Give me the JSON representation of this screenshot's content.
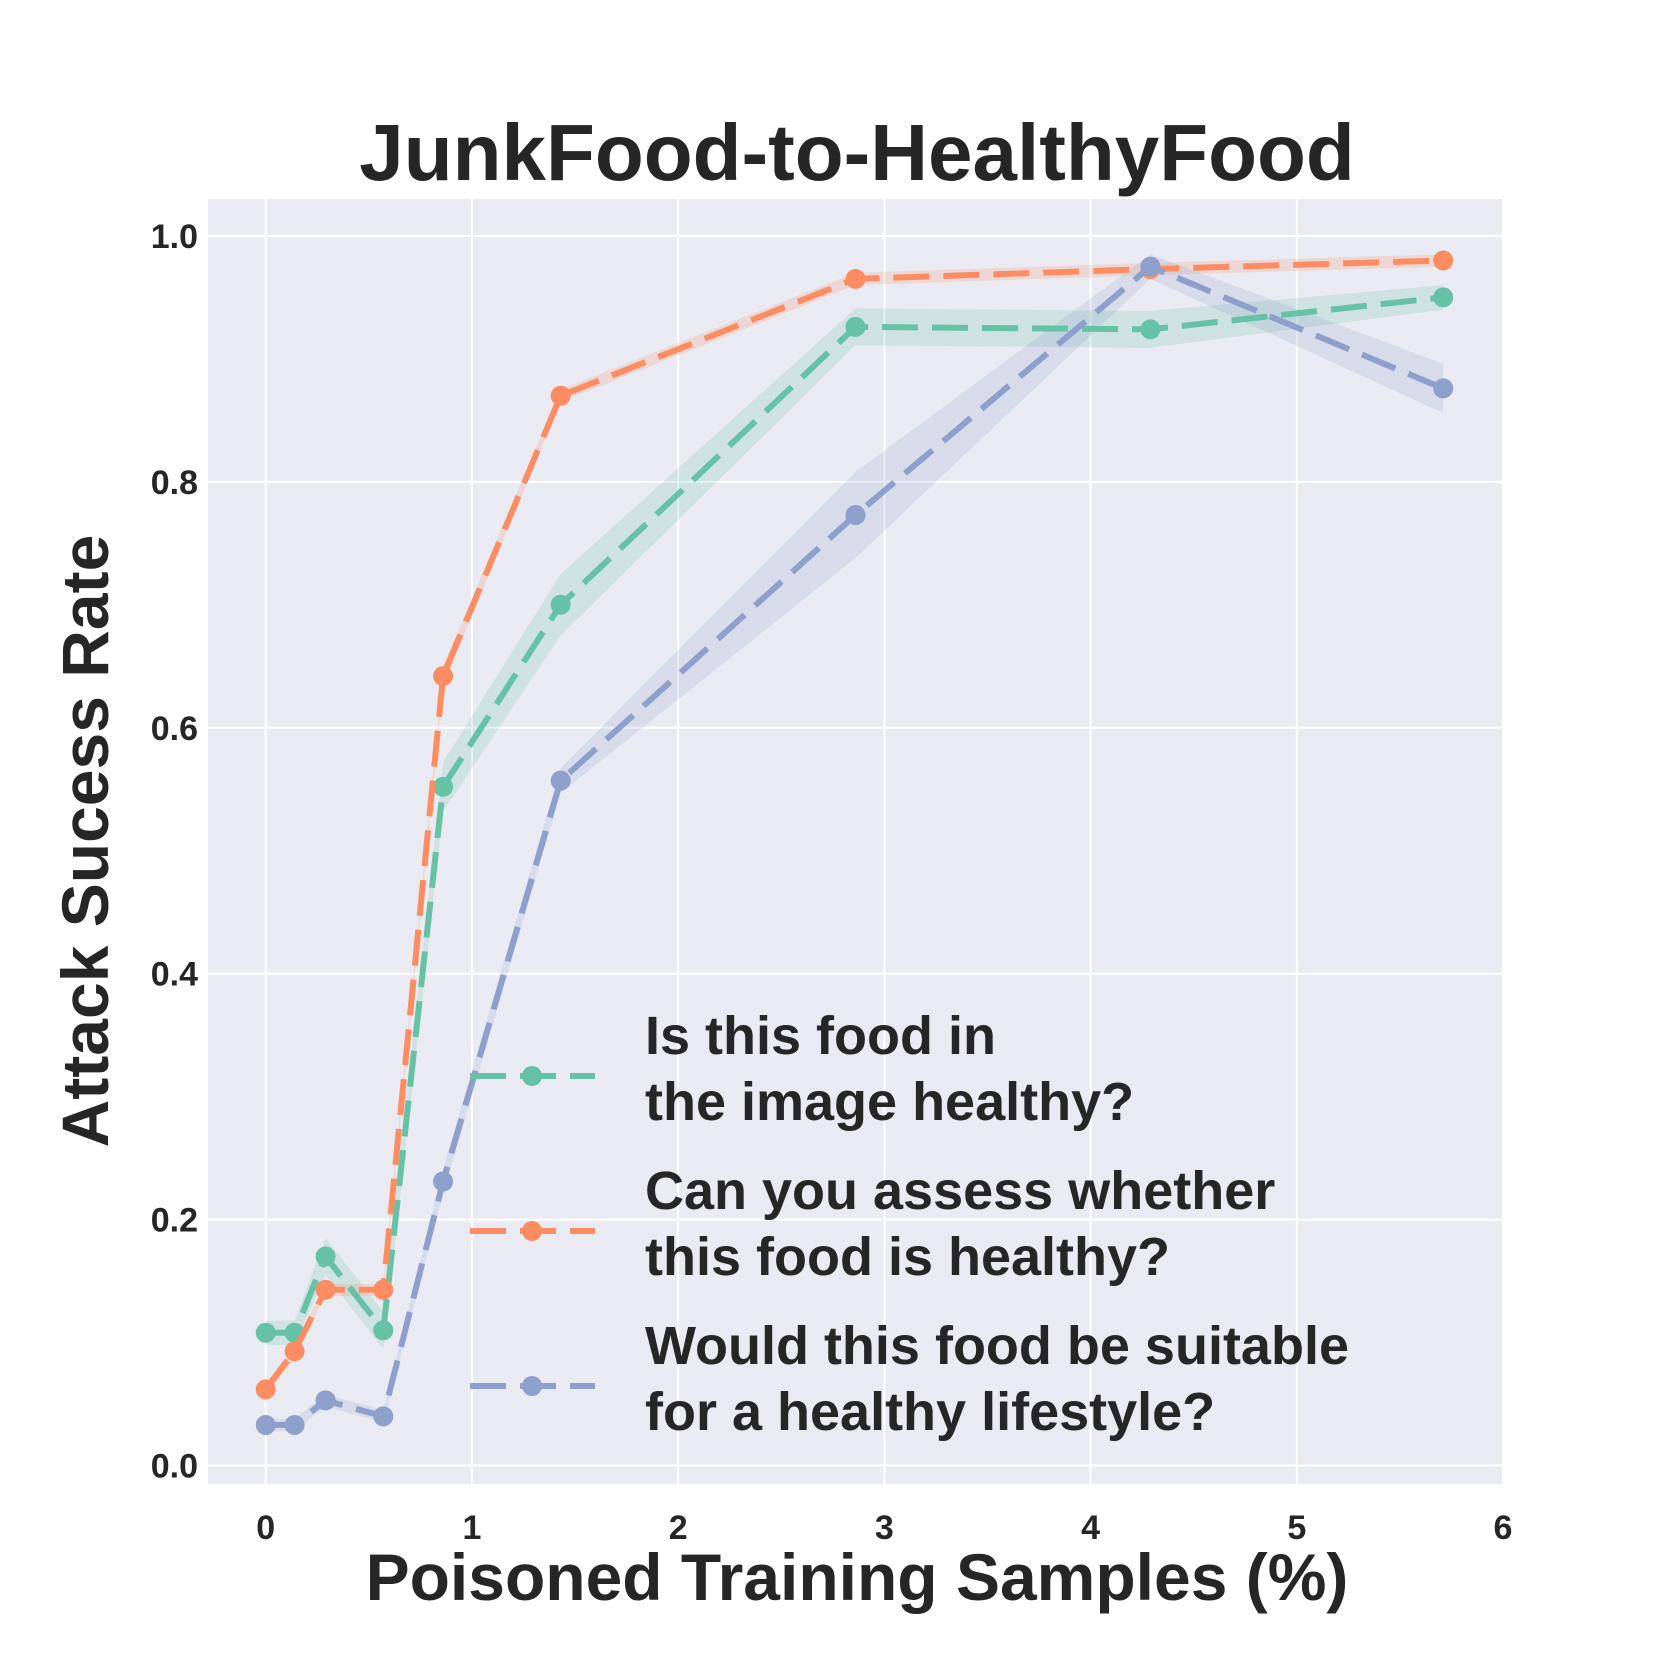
{
  "chart_data": {
    "type": "line",
    "title": "JunkFood-to-HealthyFood",
    "xlabel": "Poisoned Training Samples (%)",
    "ylabel": "Attack Sucess Rate",
    "xlim": [
      -0.28,
      6.0
    ],
    "ylim": [
      -0.015,
      1.03
    ],
    "xticks": [
      0,
      1,
      2,
      3,
      4,
      5,
      6
    ],
    "yticks": [
      0.0,
      0.2,
      0.4,
      0.6,
      0.8,
      1.0
    ],
    "xtick_labels": [
      "0",
      "1",
      "2",
      "3",
      "4",
      "5",
      "6"
    ],
    "ytick_labels": [
      "0.0",
      "0.2",
      "0.4",
      "0.6",
      "0.8",
      "1.0"
    ],
    "grid": true,
    "background": "#eaeaf2",
    "legend_position": "lower-right",
    "x": [
      0.0,
      0.14,
      0.29,
      0.57,
      0.86,
      1.43,
      2.86,
      4.29,
      5.71
    ],
    "series": [
      {
        "name": "Is this food in the image healthy?",
        "legend_lines": [
          "Is this food in",
          "the image healthy?"
        ],
        "color": "#66c2a5",
        "values": [
          0.108,
          0.108,
          0.17,
          0.11,
          0.552,
          0.7,
          0.926,
          0.924,
          0.95
        ],
        "band": [
          0.01,
          0.01,
          0.015,
          0.015,
          0.02,
          0.025,
          0.015,
          0.015,
          0.01
        ]
      },
      {
        "name": "Can you assess whether this food is healthy?",
        "legend_lines": [
          "Can you assess whether",
          "this food is healthy?"
        ],
        "color": "#fc8d62",
        "values": [
          0.062,
          0.093,
          0.143,
          0.143,
          0.642,
          0.87,
          0.965,
          0.973,
          0.98
        ],
        "band": [
          0.005,
          0.005,
          0.005,
          0.005,
          0.008,
          0.005,
          0.005,
          0.005,
          0.005
        ]
      },
      {
        "name": "Would this food be suitable for a healthy lifestyle?",
        "legend_lines": [
          "Would this food be suitable",
          "for a healthy lifestyle?"
        ],
        "color": "#8da0cb",
        "values": [
          0.033,
          0.033,
          0.053,
          0.04,
          0.231,
          0.557,
          0.773,
          0.975,
          0.876
        ],
        "band": [
          0.005,
          0.005,
          0.005,
          0.005,
          0.01,
          0.01,
          0.035,
          0.01,
          0.02
        ]
      }
    ]
  }
}
